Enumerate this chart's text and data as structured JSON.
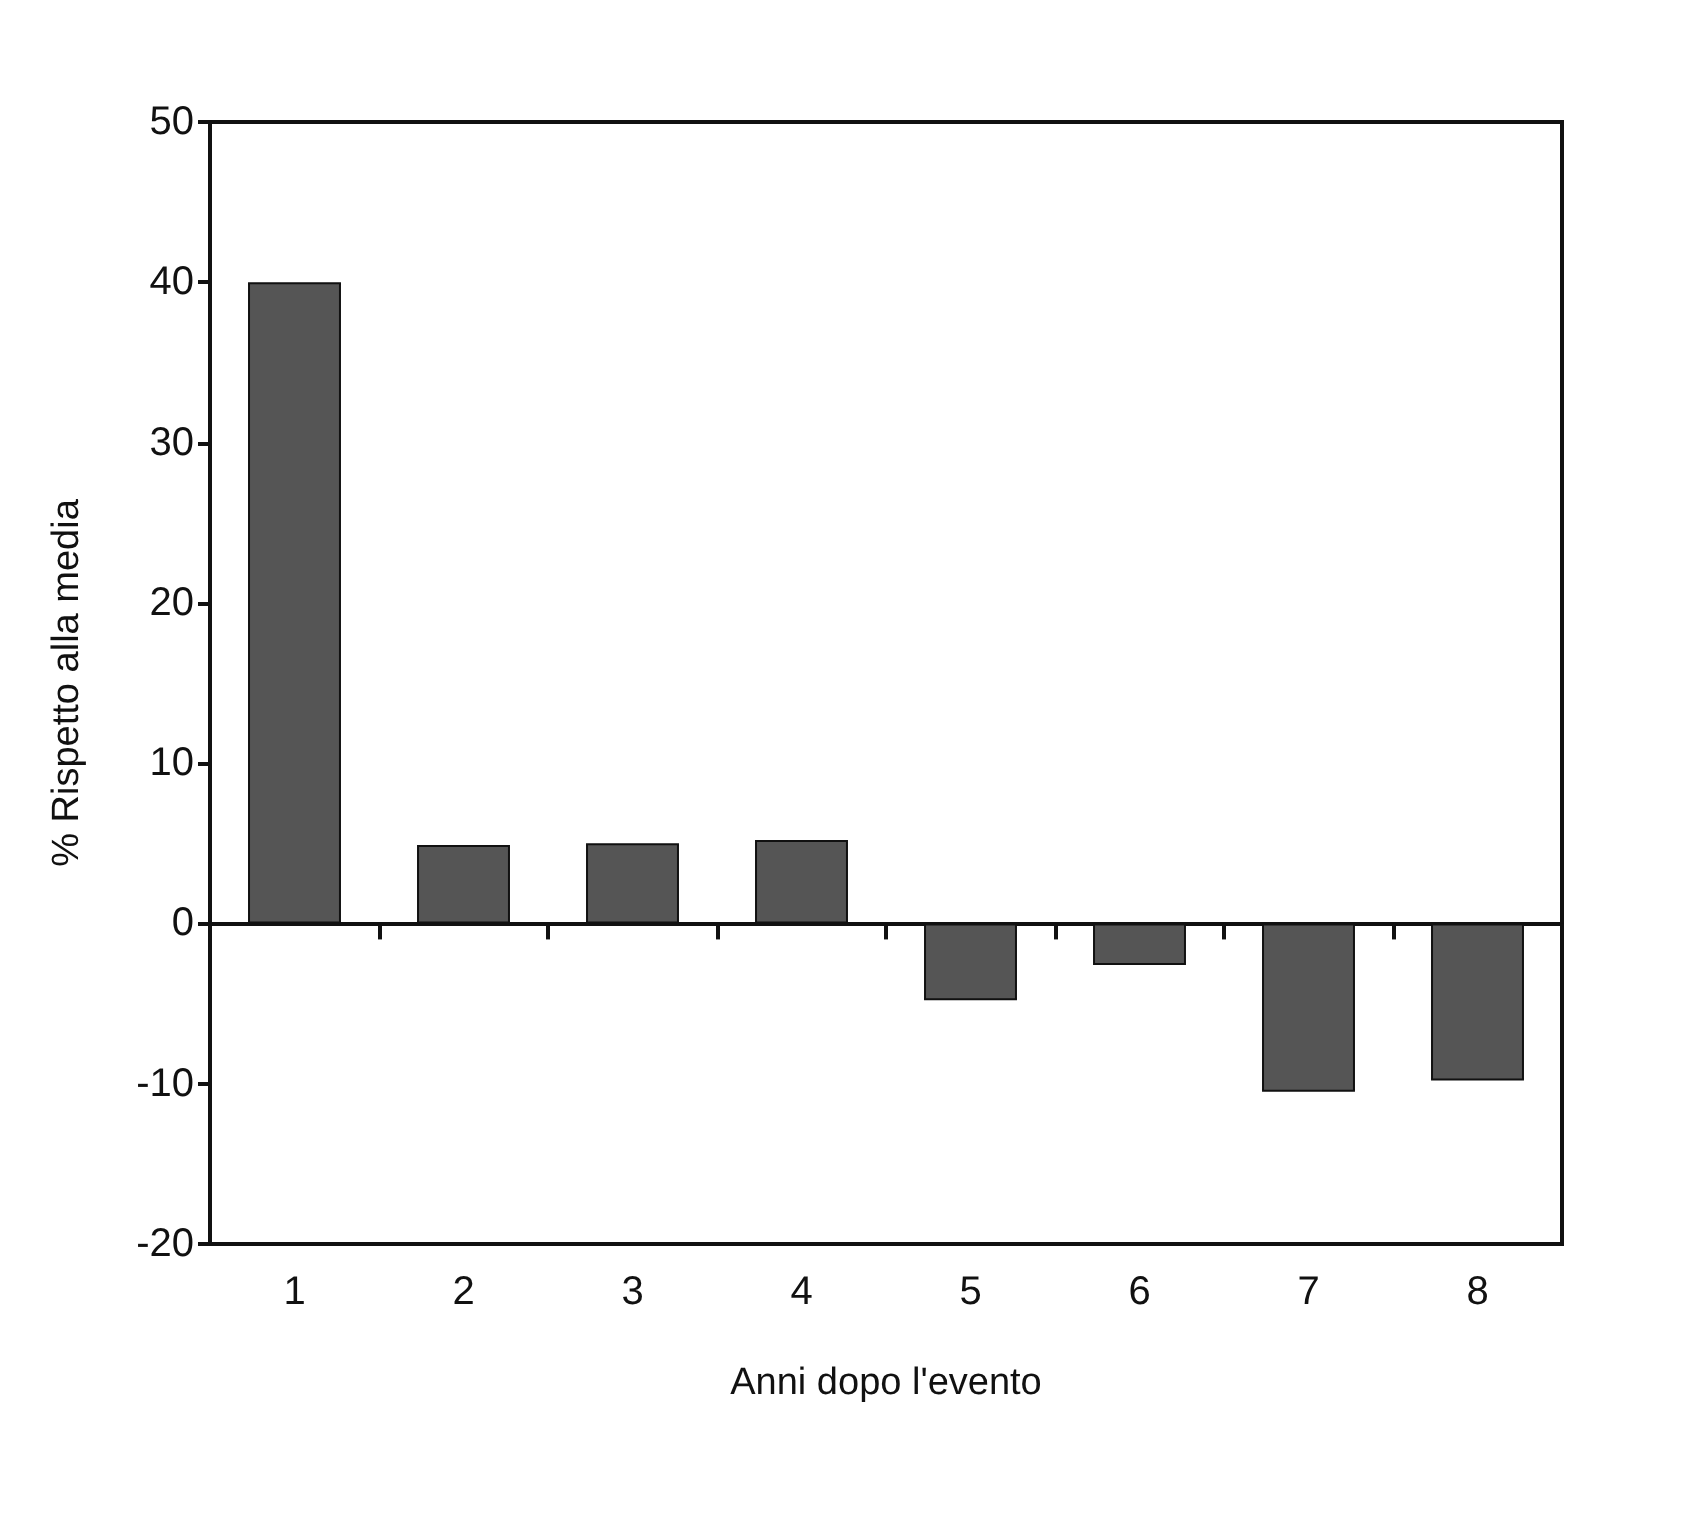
{
  "chart_data": {
    "type": "bar",
    "xlabel": "Anni dopo l'evento",
    "ylabel": "% Rispetto alla media",
    "categories": [
      "1",
      "2",
      "3",
      "4",
      "5",
      "6",
      "7",
      "8"
    ],
    "values": [
      40,
      4.9,
      5,
      5.2,
      -4.8,
      -2.6,
      -10.5,
      -9.8
    ],
    "color": "#555555",
    "ylim": [
      -20,
      50
    ],
    "yticks": [
      -20,
      -10,
      0,
      10,
      20,
      30,
      40,
      50
    ]
  }
}
